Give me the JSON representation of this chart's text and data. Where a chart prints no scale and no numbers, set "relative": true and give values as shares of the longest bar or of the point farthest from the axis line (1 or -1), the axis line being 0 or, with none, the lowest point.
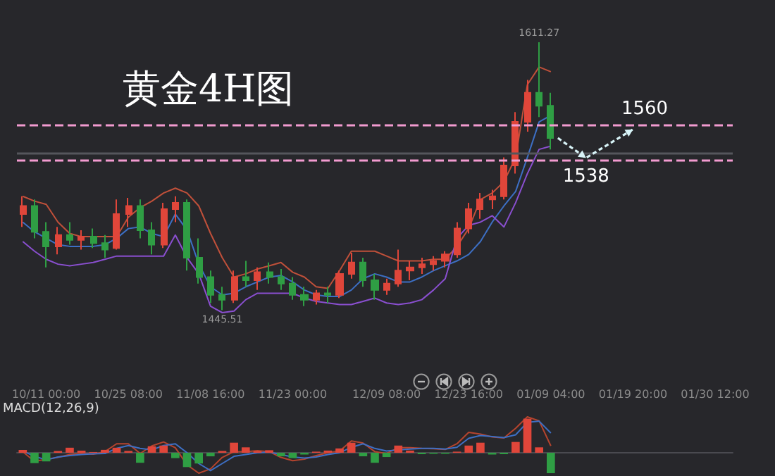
{
  "chart_data": [
    {
      "type": "candlestick",
      "title": "黄金4H图",
      "tick_labels": "x",
      "marker": "none",
      "categories": [
        null,
        null,
        "10/11 00:00",
        null,
        null,
        null,
        null,
        null,
        null,
        "10/25 08:00",
        null,
        null,
        null,
        null,
        null,
        null,
        "11/08 16:00",
        null,
        null,
        null,
        null,
        null,
        null,
        "11/23 00:00",
        null,
        null,
        null,
        null,
        null,
        null,
        null,
        "12/09 08:00",
        null,
        null,
        null,
        null,
        null,
        null,
        "12/23 16:00",
        null,
        null,
        null,
        null,
        null,
        null,
        "01/09 04:00",
        null,
        null,
        null,
        null,
        null,
        null,
        "01/19 20:00",
        null,
        null,
        null,
        null,
        null,
        null,
        "01/30 12:00",
        null
      ],
      "ohlc": [
        [
          1505,
          1516,
          1497,
          1510
        ],
        [
          1510,
          1514,
          1490,
          1494
        ],
        [
          1494,
          1500,
          1472,
          1485
        ],
        [
          1485,
          1497,
          1480,
          1492
        ],
        [
          1492,
          1500,
          1486,
          1489
        ],
        [
          1489,
          1495,
          1483,
          1491
        ],
        [
          1491,
          1496,
          1484,
          1487
        ],
        [
          1487,
          1492,
          1478,
          1483
        ],
        [
          1484,
          1514,
          1483,
          1505
        ],
        [
          1505,
          1515,
          1497,
          1510
        ],
        [
          1510,
          1514,
          1490,
          1495
        ],
        [
          1495,
          1500,
          1480,
          1486
        ],
        [
          1486,
          1512,
          1484,
          1508
        ],
        [
          1508,
          1516,
          1500,
          1512
        ],
        [
          1512,
          1514,
          1470,
          1478
        ],
        [
          1478,
          1490,
          1462,
          1466
        ],
        [
          1466,
          1470,
          1450,
          1455
        ],
        [
          1455,
          1460,
          1445.51,
          1452
        ],
        [
          1452,
          1470,
          1450,
          1466
        ],
        [
          1466,
          1476,
          1460,
          1464
        ],
        [
          1464,
          1472,
          1458,
          1469
        ],
        [
          1469,
          1475,
          1462,
          1466
        ],
        [
          1466,
          1471,
          1458,
          1462
        ],
        [
          1462,
          1466,
          1452,
          1455
        ],
        [
          1455,
          1460,
          1448,
          1452
        ],
        [
          1452,
          1458,
          1449,
          1456
        ],
        [
          1456,
          1460,
          1450,
          1455
        ],
        [
          1455,
          1470,
          1453,
          1468
        ],
        [
          1468,
          1481,
          1465,
          1475
        ],
        [
          1475,
          1478,
          1460,
          1464
        ],
        [
          1464,
          1468,
          1452,
          1458
        ],
        [
          1458,
          1465,
          1455,
          1462
        ],
        [
          1462,
          1483,
          1460,
          1470
        ],
        [
          1470,
          1476,
          1464,
          1472
        ],
        [
          1472,
          1478,
          1468,
          1474
        ],
        [
          1474,
          1479,
          1470,
          1476
        ],
        [
          1476,
          1482,
          1472,
          1480
        ],
        [
          1480,
          1500,
          1478,
          1496
        ],
        [
          1496,
          1512,
          1493,
          1508
        ],
        [
          1508,
          1518,
          1502,
          1514
        ],
        [
          1514,
          1520,
          1508,
          1516
        ],
        [
          1516,
          1540,
          1514,
          1535
        ],
        [
          1535,
          1568,
          1530,
          1562
        ],
        [
          1562,
          1588,
          1556,
          1580
        ],
        [
          1580,
          1611.27,
          1565,
          1572
        ],
        [
          1572,
          1580,
          1545,
          1552
        ],
        null,
        null,
        null,
        null,
        null,
        null,
        null,
        null,
        null,
        null,
        null,
        null,
        null,
        null,
        null
      ],
      "colors": [
        "#e0463a",
        "#2f9e44",
        "#2f9e44",
        "#e0463a",
        "#2f9e44",
        "#e0463a",
        "#2f9e44",
        "#2f9e44",
        "#e0463a",
        "#e0463a",
        "#2f9e44",
        "#2f9e44",
        "#e0463a",
        "#e0463a",
        "#2f9e44",
        "#2f9e44",
        "#2f9e44",
        "#2f9e44",
        "#e0463a",
        "#2f9e44",
        "#e0463a",
        "#2f9e44",
        "#2f9e44",
        "#2f9e44",
        "#2f9e44",
        "#e0463a",
        "#2f9e44",
        "#e0463a",
        "#e0463a",
        "#2f9e44",
        "#2f9e44",
        "#e0463a",
        "#e0463a",
        "#e0463a",
        "#e0463a",
        "#e0463a",
        "#e0463a",
        "#e0463a",
        "#e0463a",
        "#e0463a",
        "#e0463a",
        "#e0463a",
        "#e0463a",
        "#e0463a",
        "#2f9e44",
        "#2f9e44",
        null,
        null,
        null,
        null,
        null,
        null,
        null,
        null,
        null,
        null,
        null,
        null,
        null,
        null,
        null
      ],
      "series": [
        {
          "type": "line",
          "color": "#c0503a",
          "values": [
            1516,
            1513,
            1511,
            1500,
            1493,
            1491,
            1491,
            1491,
            1491,
            1503,
            1509,
            1513,
            1518,
            1521,
            1518,
            1510,
            1493,
            1478,
            1466,
            1468,
            1471,
            1473,
            1475,
            1469,
            1466,
            1460,
            1459,
            1470,
            1482,
            1482,
            1482,
            1479,
            1476,
            1476,
            1476,
            1477,
            1477,
            1485,
            1496,
            1514,
            1518,
            1525,
            1540,
            1585,
            1596,
            1593,
            null,
            null,
            null,
            null,
            null,
            null,
            null,
            null,
            null,
            null,
            null,
            null,
            null,
            null,
            null
          ]
        },
        {
          "type": "line",
          "color": "#3d6fc4",
          "values": [
            1500,
            1494,
            1490,
            1486,
            1485,
            1485,
            1485,
            1486,
            1490,
            1496,
            1497,
            1493,
            1491,
            1505,
            1495,
            1474,
            1460,
            1455,
            1456,
            1460,
            1463,
            1466,
            1467,
            1463,
            1458,
            1455,
            1454,
            1454,
            1458,
            1465,
            1468,
            1466,
            1463,
            1463,
            1466,
            1470,
            1473,
            1476,
            1480,
            1488,
            1500,
            1510,
            1519,
            1540,
            1562,
            1566,
            null,
            null,
            null,
            null,
            null,
            null,
            null,
            null,
            null,
            null,
            null,
            null,
            null,
            null,
            null
          ]
        },
        {
          "type": "line",
          "color": "#8a4fd0",
          "values": [
            1488,
            1482,
            1477,
            1474,
            1473,
            1474,
            1475,
            1477,
            1479,
            1479,
            1479,
            1479,
            1479,
            1492,
            1478,
            1468,
            1448,
            1444,
            1445,
            1452,
            1456,
            1456,
            1456,
            1456,
            1453,
            1451,
            1450,
            1449,
            1449,
            1451,
            1453,
            1450,
            1449,
            1450,
            1452,
            1458,
            1465,
            1490,
            1498,
            1500,
            1504,
            1497,
            1512,
            1530,
            1545,
            1547,
            null,
            null,
            null,
            null,
            null,
            null,
            null,
            null,
            null,
            null,
            null,
            null,
            null,
            null,
            null
          ]
        }
      ],
      "ref_lines": [
        {
          "axis": "y",
          "value": 1560,
          "label": "1560",
          "color": "#f29bd0",
          "line_style": "dashed"
        },
        {
          "axis": "y",
          "value": 1538,
          "label": "1538",
          "color": "#f29bd0",
          "line_style": "dashed"
        },
        {
          "axis": "y",
          "value": 1543,
          "color": "#55565c",
          "line_style": "solid"
        }
      ],
      "annotations": [
        {
          "text": "1611.27",
          "y": 1611.27
        },
        {
          "text": "1445.51",
          "y": 1445.51
        }
      ]
    },
    {
      "type": "bar",
      "relative": true,
      "tick_labels": false,
      "marker": "none",
      "annotations": [
        "MACD(12,26,9)"
      ],
      "categories": [
        null,
        null,
        null,
        null,
        null,
        null,
        null,
        null,
        null,
        null,
        null,
        null,
        null,
        null,
        null,
        null,
        null,
        null,
        null,
        null,
        null,
        null,
        null,
        null,
        null,
        null,
        null,
        null,
        null,
        null,
        null,
        null,
        null,
        null,
        null,
        null,
        null,
        null,
        null,
        null,
        null,
        null,
        null,
        null,
        null,
        null,
        null,
        null,
        null,
        null,
        null,
        null,
        null,
        null,
        null,
        null,
        null,
        null,
        null,
        null,
        null
      ],
      "series": [
        {
          "type": "bar",
          "values": [
            0.08,
            -0.29,
            -0.24,
            0.05,
            0.14,
            0.06,
            0.02,
            0.08,
            0.14,
            0.05,
            -0.28,
            0.18,
            0.2,
            -0.15,
            -0.4,
            -0.3,
            -0.1,
            0.05,
            0.28,
            0.15,
            0.04,
            0.07,
            -0.1,
            -0.15,
            -0.05,
            0.03,
            0.06,
            0.12,
            0.28,
            -0.1,
            -0.28,
            -0.12,
            0.2,
            0.06,
            -0.04,
            -0.03,
            -0.03,
            0.03,
            0.2,
            0.28,
            -0.05,
            -0.04,
            0.3,
            0.95,
            0.15,
            -0.57,
            null,
            null,
            null,
            null,
            null,
            null,
            null,
            null,
            null,
            null,
            null,
            null,
            null,
            null,
            null
          ],
          "colors": [
            "#e0463a",
            "#2f9e44",
            "#2f9e44",
            "#e0463a",
            "#e0463a",
            "#e0463a",
            "#e0463a",
            "#e0463a",
            "#e0463a",
            "#e0463a",
            "#2f9e44",
            "#e0463a",
            "#e0463a",
            "#2f9e44",
            "#2f9e44",
            "#2f9e44",
            "#2f9e44",
            "#e0463a",
            "#e0463a",
            "#e0463a",
            "#e0463a",
            "#e0463a",
            "#2f9e44",
            "#2f9e44",
            "#2f9e44",
            "#e0463a",
            "#e0463a",
            "#e0463a",
            "#e0463a",
            "#2f9e44",
            "#2f9e44",
            "#2f9e44",
            "#e0463a",
            "#e0463a",
            "#2f9e44",
            "#2f9e44",
            "#2f9e44",
            "#e0463a",
            "#e0463a",
            "#e0463a",
            "#2f9e44",
            "#2f9e44",
            "#e0463a",
            "#e0463a",
            "#e0463a",
            "#2f9e44",
            null,
            null,
            null,
            null,
            null,
            null,
            null,
            null,
            null,
            null,
            null,
            null,
            null,
            null,
            null
          ]
        },
        {
          "type": "line",
          "color": "#b5442e",
          "values": [
            0.03,
            -0.24,
            -0.18,
            -0.13,
            -0.05,
            -0.02,
            -0.04,
            0.03,
            0.25,
            0.25,
            -0.02,
            0.19,
            0.3,
            0.14,
            -0.34,
            -0.57,
            -0.45,
            -0.13,
            0.03,
            0.03,
            0.06,
            0.03,
            -0.13,
            -0.22,
            -0.18,
            -0.08,
            0,
            0.05,
            0.33,
            0.27,
            0.03,
            -0.02,
            0.14,
            0.14,
            0.12,
            0.11,
            0.09,
            0.25,
            0.57,
            0.52,
            0.44,
            0.41,
            0.68,
            1.0,
            0.89,
            0.19,
            null,
            null,
            null,
            null,
            null,
            null,
            null,
            null,
            null,
            null,
            null,
            null,
            null,
            null,
            null
          ]
        },
        {
          "type": "line",
          "color": "#3d6fc4",
          "values": [
            0.05,
            -0.1,
            -0.2,
            -0.12,
            -0.08,
            -0.05,
            -0.03,
            -0.02,
            0.12,
            0.2,
            0.12,
            0.08,
            0.2,
            0.25,
            0,
            -0.3,
            -0.5,
            -0.3,
            -0.1,
            -0.05,
            0,
            0.02,
            -0.05,
            -0.12,
            -0.15,
            -0.12,
            -0.05,
            0,
            0.15,
            0.25,
            0.12,
            0.05,
            0.08,
            0.1,
            0.12,
            0.12,
            0.1,
            0.15,
            0.4,
            0.48,
            0.45,
            0.42,
            0.5,
            0.85,
            0.88,
            0.55,
            null,
            null,
            null,
            null,
            null,
            null,
            null,
            null,
            null,
            null,
            null,
            null,
            null,
            null,
            null
          ]
        }
      ]
    }
  ]
}
